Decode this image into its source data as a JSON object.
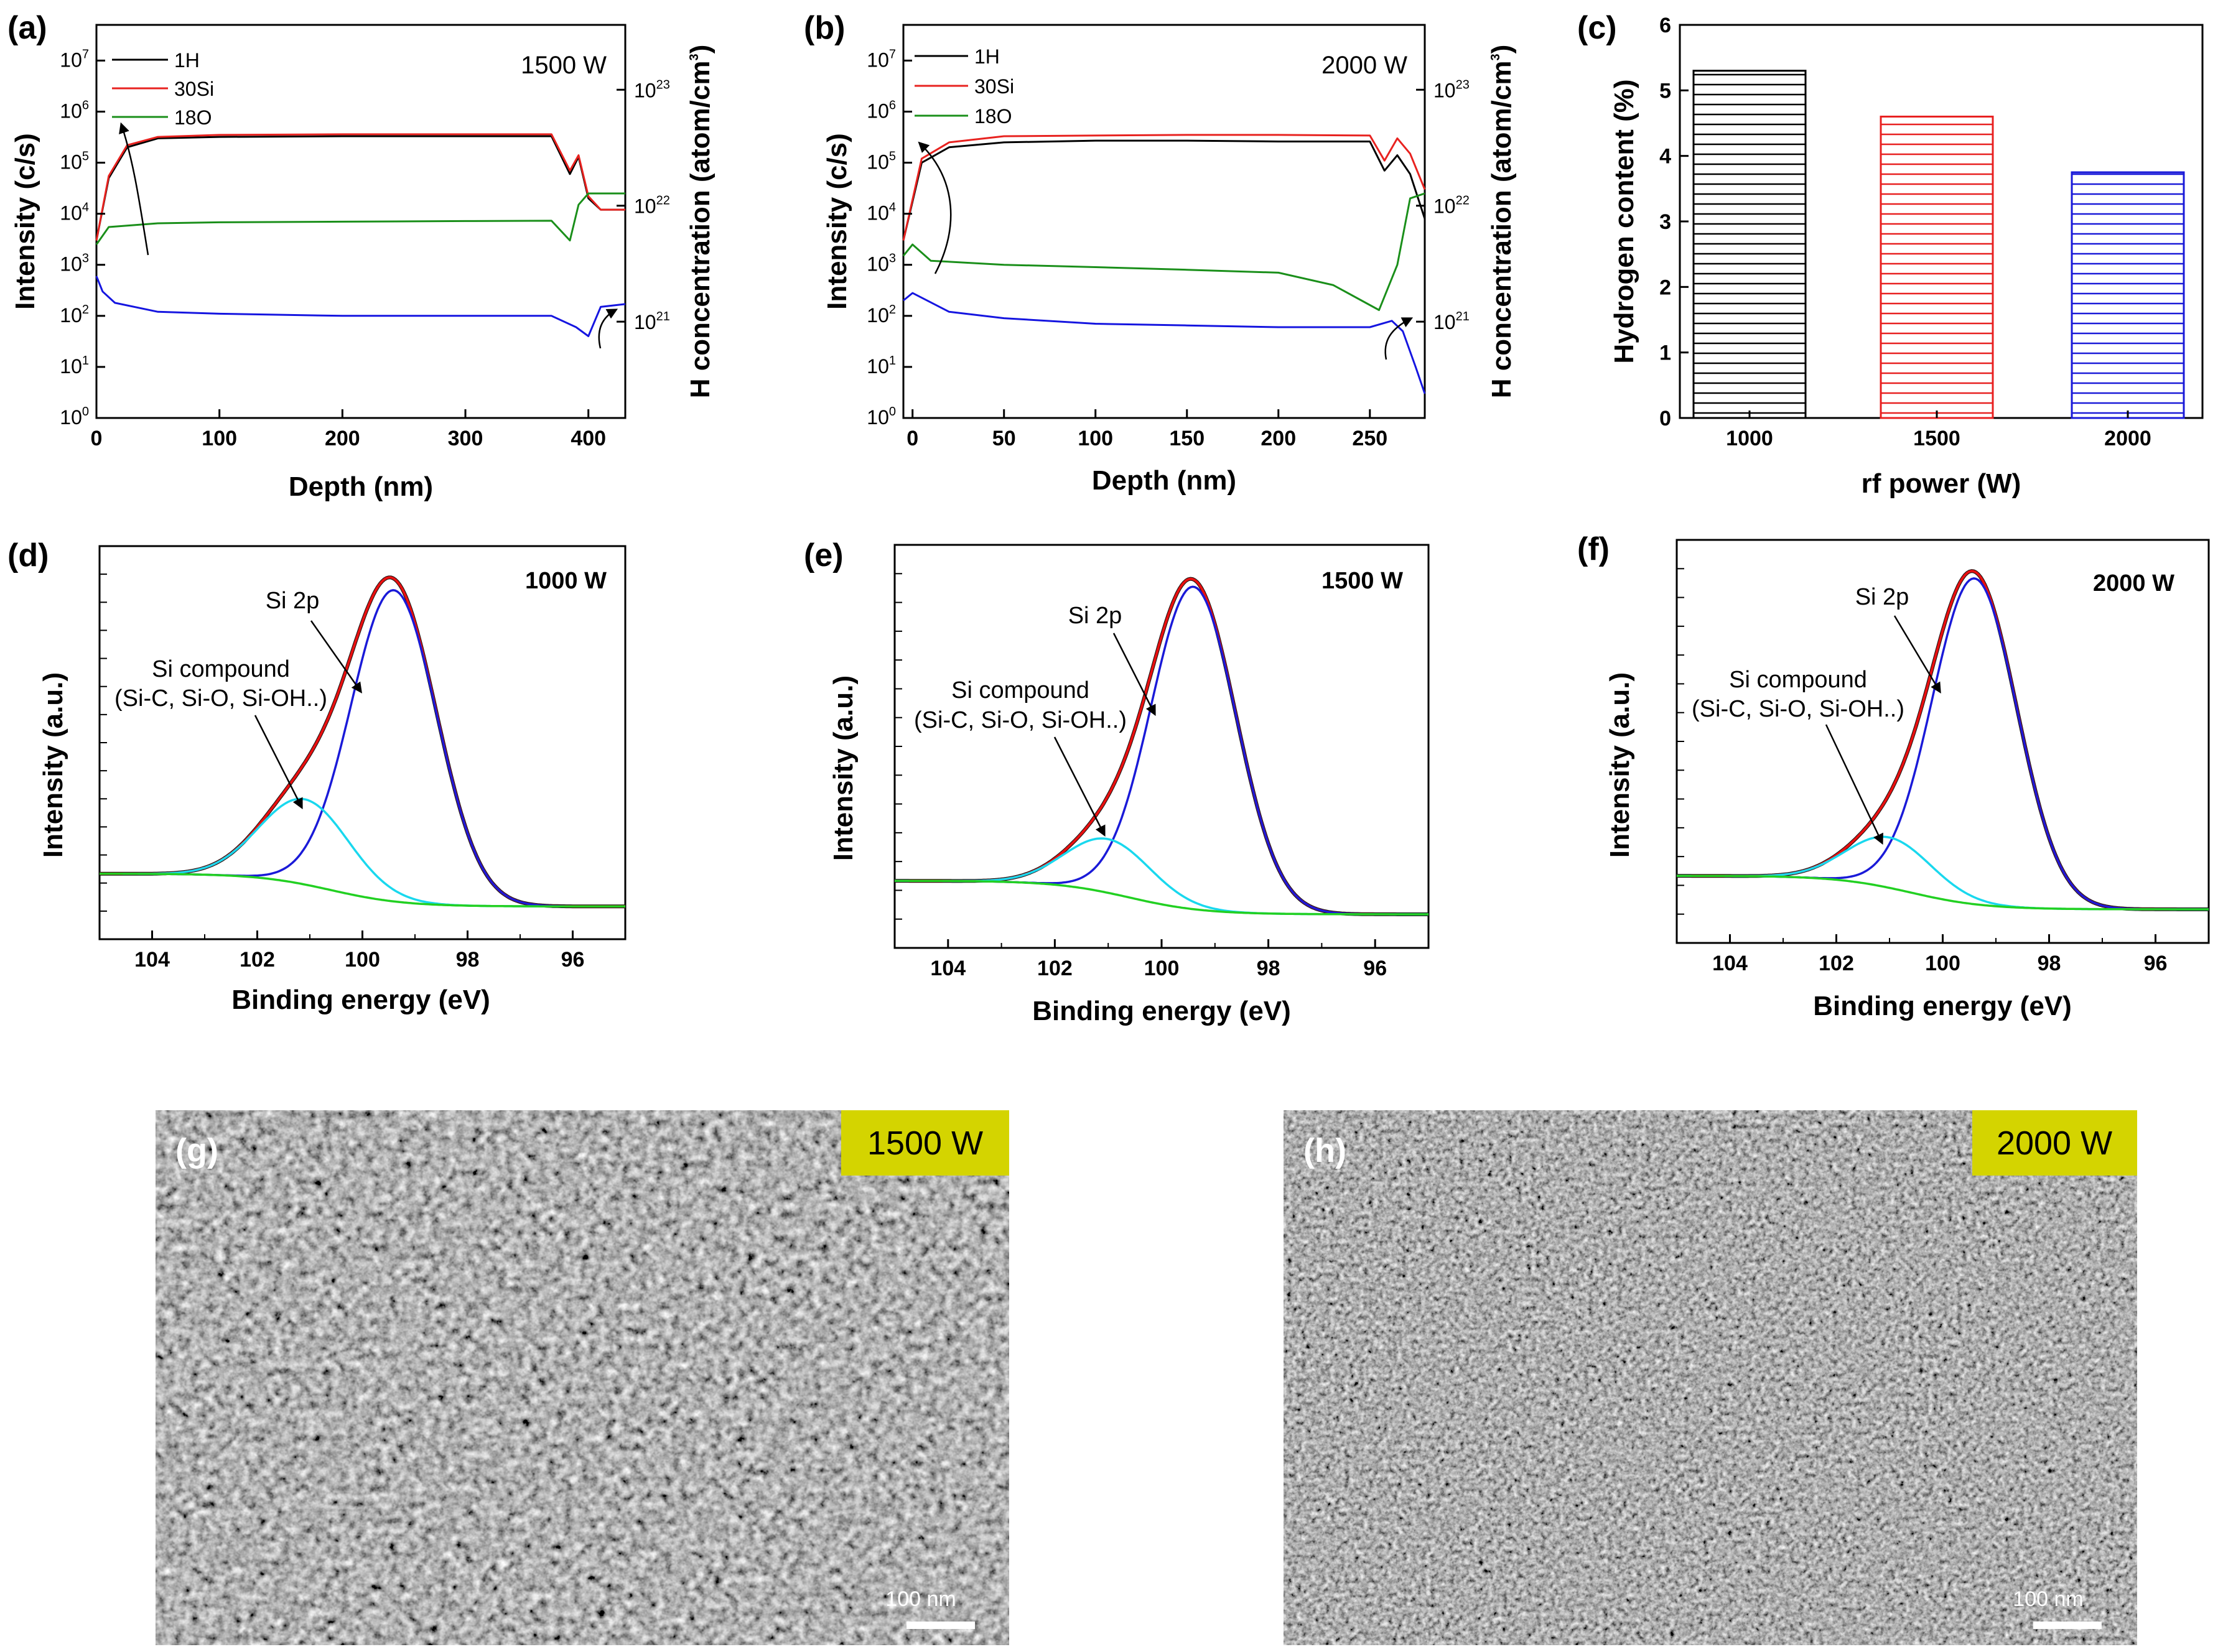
{
  "colors": {
    "h": "#000000",
    "si": "#e8221f",
    "o": "#1a8f1a",
    "hconc": "#1515e0",
    "fit_main": "#1a1ad8",
    "fit_comp": "#19d8ee",
    "fit_bg": "#22d022",
    "envelope": "#e81010",
    "bar_1000": "#000000",
    "bar_1500": "#e82020",
    "bar_2000": "#1a1ad8",
    "label_bg": "#d4d400"
  },
  "panels": {
    "a": {
      "label": "(a)",
      "power": "1500 W",
      "xlabel": "Depth (nm)",
      "ylabel": "Intensity (c/s)",
      "y2label": "H concentration (atom/cm",
      "y2sup": "3",
      "y2close": ")",
      "legend": [
        "1H",
        "30Si",
        "18O"
      ],
      "xticks": [
        "0",
        "100",
        "200",
        "300",
        "400"
      ],
      "y2ticks": [
        {
          "base": "10",
          "exp": "23"
        },
        {
          "base": "10",
          "exp": "22"
        },
        {
          "base": "10",
          "exp": "21"
        }
      ]
    },
    "b": {
      "label": "(b)",
      "power": "2000 W",
      "xlabel": "Depth (nm)",
      "ylabel": "Intensity (c/s)",
      "y2label": "H concentration (atom/cm",
      "y2sup": "3",
      "y2close": ")",
      "legend": [
        "1H",
        "30Si",
        "18O"
      ],
      "xticks": [
        "0",
        "50",
        "100",
        "150",
        "200",
        "250"
      ],
      "y2ticks": [
        {
          "base": "10",
          "exp": "23"
        },
        {
          "base": "10",
          "exp": "22"
        },
        {
          "base": "10",
          "exp": "21"
        }
      ]
    },
    "c": {
      "label": "(c)",
      "xlabel": "rf power (W)",
      "ylabel": "Hydrogen content (%)",
      "yticks": [
        "0",
        "1",
        "2",
        "3",
        "4",
        "5",
        "6"
      ]
    },
    "d": {
      "label": "(d)",
      "power": "1000 W",
      "xlabel": "Binding energy (eV)",
      "ylabel": "Intensity (a.u.)",
      "ann1": "Si 2p",
      "ann2a": "Si compound",
      "ann2b": "(Si-C, Si-O, Si-OH..)",
      "xticks": [
        "104",
        "102",
        "100",
        "98",
        "96"
      ]
    },
    "e": {
      "label": "(e)",
      "power": "1500 W",
      "xlabel": "Binding energy (eV)",
      "ylabel": "Intensity (a.u.)",
      "ann1": "Si 2p",
      "ann2a": "Si compound",
      "ann2b": "(Si-C, Si-O, Si-OH..)",
      "xticks": [
        "104",
        "102",
        "100",
        "98",
        "96"
      ]
    },
    "f": {
      "label": "(f)",
      "power": "2000 W",
      "xlabel": "Binding energy (eV)",
      "ylabel": "Intensity (a.u.)",
      "ann1": "Si 2p",
      "ann2a": "Si compound",
      "ann2b": "(Si-C, Si-O, Si-OH..)",
      "xticks": [
        "104",
        "102",
        "100",
        "98",
        "96"
      ]
    },
    "g": {
      "label": "(g)",
      "power": "1500 W",
      "scale": "100 nm"
    },
    "h": {
      "label": "(h)",
      "power": "2000 W",
      "scale": "100 nm"
    }
  },
  "chart_data": [
    {
      "id": "a",
      "type": "line",
      "title": "1500 W",
      "xlabel": "Depth (nm)",
      "ylabel": "Intensity (c/s)",
      "yscale": "log",
      "xlim": [
        0,
        430
      ],
      "ylim": [
        1,
        50000000
      ],
      "series": [
        {
          "name": "1H",
          "x": [
            0,
            10,
            25,
            50,
            100,
            200,
            300,
            370,
            385,
            392,
            400,
            410,
            430
          ],
          "y": [
            3000,
            50000,
            200000,
            300000,
            320000,
            330000,
            330000,
            330000,
            60000,
            130000,
            20000,
            12000,
            12000
          ]
        },
        {
          "name": "30Si",
          "x": [
            0,
            10,
            25,
            50,
            100,
            200,
            300,
            370,
            385,
            392,
            400,
            410,
            430
          ],
          "y": [
            3000,
            55000,
            220000,
            320000,
            350000,
            360000,
            360000,
            360000,
            70000,
            140000,
            22000,
            12000,
            12000
          ]
        },
        {
          "name": "18O",
          "x": [
            0,
            10,
            50,
            100,
            200,
            300,
            370,
            385,
            392,
            400,
            430
          ],
          "y": [
            2500,
            5500,
            6500,
            6800,
            7000,
            7200,
            7300,
            3000,
            15000,
            25000,
            25000
          ]
        },
        {
          "name": "H concentration",
          "x": [
            0,
            5,
            15,
            50,
            100,
            200,
            300,
            370,
            390,
            400,
            410,
            430
          ],
          "y": [
            600,
            300,
            180,
            120,
            110,
            100,
            100,
            100,
            60,
            40,
            150,
            170
          ]
        }
      ]
    },
    {
      "id": "b",
      "type": "line",
      "title": "2000 W",
      "xlabel": "Depth (nm)",
      "ylabel": "Intensity (c/s)",
      "yscale": "log",
      "xlim": [
        -5,
        280
      ],
      "ylim": [
        1,
        50000000
      ],
      "series": [
        {
          "name": "1H",
          "x": [
            -5,
            5,
            20,
            50,
            100,
            150,
            200,
            250,
            258,
            265,
            272,
            280
          ],
          "y": [
            3000,
            100000,
            200000,
            250000,
            270000,
            270000,
            260000,
            260000,
            70000,
            140000,
            60000,
            8000
          ]
        },
        {
          "name": "30Si",
          "x": [
            -5,
            5,
            20,
            50,
            100,
            150,
            200,
            250,
            258,
            265,
            272,
            280
          ],
          "y": [
            3000,
            120000,
            250000,
            330000,
            340000,
            350000,
            350000,
            340000,
            110000,
            300000,
            150000,
            30000
          ]
        },
        {
          "name": "18O",
          "x": [
            -5,
            0,
            10,
            50,
            100,
            150,
            200,
            230,
            255,
            265,
            272,
            280
          ],
          "y": [
            1500,
            2500,
            1200,
            1000,
            900,
            800,
            700,
            400,
            130,
            1000,
            20000,
            25000
          ]
        },
        {
          "name": "H concentration",
          "x": [
            -5,
            0,
            20,
            50,
            100,
            150,
            200,
            250,
            262,
            268,
            275,
            280
          ],
          "y": [
            200,
            280,
            120,
            90,
            70,
            65,
            60,
            60,
            80,
            50,
            10,
            3
          ]
        }
      ]
    },
    {
      "id": "c",
      "type": "bar",
      "xlabel": "rf power (W)",
      "ylabel": "Hydrogen content (%)",
      "categories": [
        "1000",
        "1500",
        "2000"
      ],
      "values": [
        5.3,
        4.6,
        3.75
      ],
      "ylim": [
        0,
        6
      ]
    },
    {
      "id": "d",
      "type": "line",
      "title": "1000 W",
      "xlabel": "Binding energy (eV)",
      "ylabel": "Intensity (a.u.)",
      "xlim": [
        105,
        95
      ],
      "ylim": [
        -0.1,
        1.1
      ],
      "series": [
        {
          "name": "Si 2p",
          "peak_center": 99.4,
          "sigma": 0.82,
          "amplitude": 0.95
        },
        {
          "name": "Si compound",
          "peak_center": 101.1,
          "sigma": 0.85,
          "amplitude": 0.26
        },
        {
          "name": "background",
          "start": 0.1,
          "end": 0.0
        },
        {
          "name": "envelope"
        }
      ]
    },
    {
      "id": "e",
      "type": "line",
      "title": "1500 W",
      "xlabel": "Binding energy (eV)",
      "ylabel": "Intensity (a.u.)",
      "xlim": [
        105,
        95
      ],
      "ylim": [
        -0.1,
        1.1
      ],
      "series": [
        {
          "name": "Si 2p",
          "peak_center": 99.4,
          "sigma": 0.8,
          "amplitude": 0.96
        },
        {
          "name": "Si compound",
          "peak_center": 101.0,
          "sigma": 0.8,
          "amplitude": 0.16
        },
        {
          "name": "background",
          "start": 0.1,
          "end": 0.0
        },
        {
          "name": "envelope"
        }
      ]
    },
    {
      "id": "f",
      "type": "line",
      "title": "2000 W",
      "xlabel": "Binding energy (eV)",
      "ylabel": "Intensity (a.u.)",
      "xlim": [
        105,
        95
      ],
      "ylim": [
        -0.1,
        1.1
      ],
      "series": [
        {
          "name": "Si 2p",
          "peak_center": 99.4,
          "sigma": 0.8,
          "amplitude": 0.97
        },
        {
          "name": "Si compound",
          "peak_center": 101.0,
          "sigma": 0.8,
          "amplitude": 0.15
        },
        {
          "name": "background",
          "start": 0.1,
          "end": 0.0
        },
        {
          "name": "envelope"
        }
      ]
    }
  ]
}
